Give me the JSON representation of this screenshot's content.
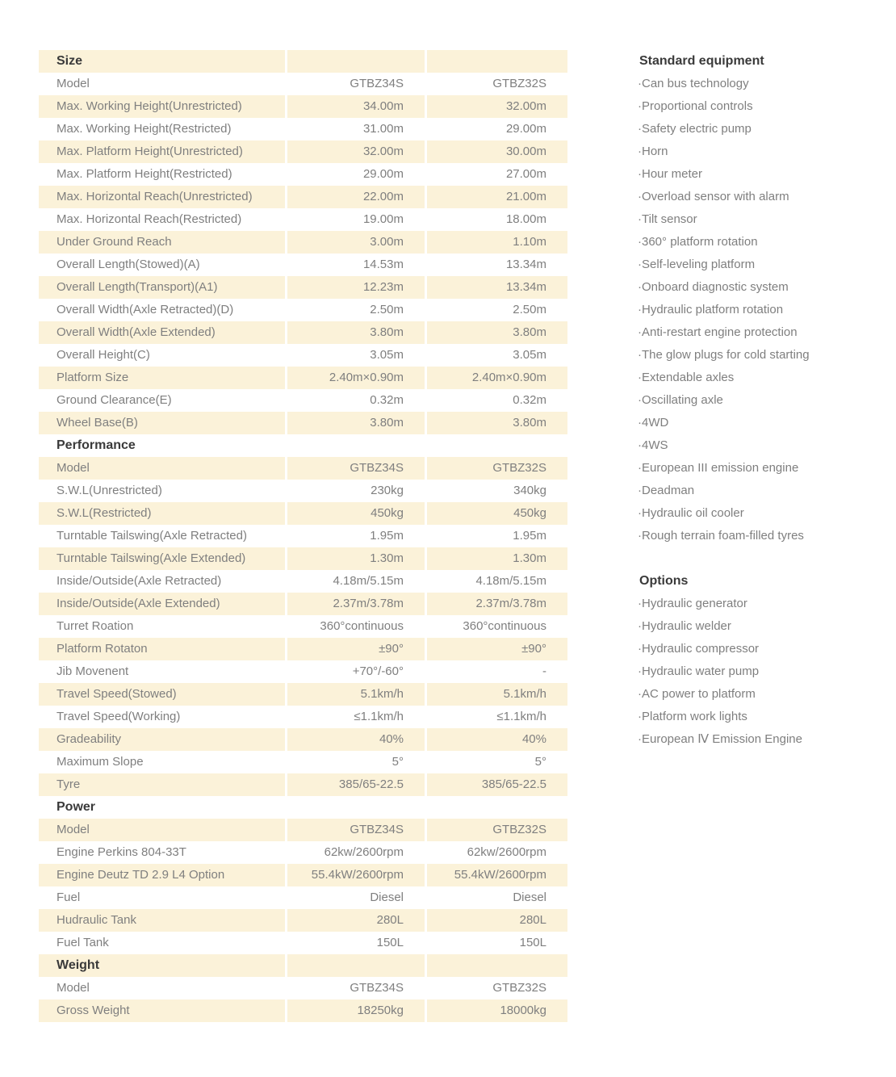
{
  "colors": {
    "row_stripe": "#fbf2d9",
    "body_text": "#7f7f7f",
    "heading_text": "#3a3a3a",
    "page_background": "#ffffff"
  },
  "spec_table": {
    "rows": [
      {
        "type": "section",
        "label": "Size",
        "v1": "",
        "v2": ""
      },
      {
        "type": "data",
        "label": "Model",
        "v1": "GTBZ34S",
        "v2": "GTBZ32S"
      },
      {
        "type": "data",
        "label": "Max. Working Height(Unrestricted)",
        "v1": "34.00m",
        "v2": "32.00m"
      },
      {
        "type": "data",
        "label": "Max. Working Height(Restricted)",
        "v1": "31.00m",
        "v2": "29.00m"
      },
      {
        "type": "data",
        "label": "Max. Platform Height(Unrestricted)",
        "v1": "32.00m",
        "v2": "30.00m"
      },
      {
        "type": "data",
        "label": "Max. Platform Height(Restricted)",
        "v1": "29.00m",
        "v2": "27.00m"
      },
      {
        "type": "data",
        "label": "Max. Horizontal Reach(Unrestricted)",
        "v1": "22.00m",
        "v2": "21.00m"
      },
      {
        "type": "data",
        "label": "Max. Horizontal Reach(Restricted)",
        "v1": "19.00m",
        "v2": "18.00m"
      },
      {
        "type": "data",
        "label": "Under Ground Reach",
        "v1": "3.00m",
        "v2": "1.10m"
      },
      {
        "type": "data",
        "label": "Overall Length(Stowed)(A)",
        "v1": "14.53m",
        "v2": "13.34m"
      },
      {
        "type": "data",
        "label": "Overall Length(Transport)(A1)",
        "v1": "12.23m",
        "v2": "13.34m"
      },
      {
        "type": "data",
        "label": "Overall Width(Axle Retracted)(D)",
        "v1": "2.50m",
        "v2": "2.50m"
      },
      {
        "type": "data",
        "label": "Overall Width(Axle Extended)",
        "v1": "3.80m",
        "v2": "3.80m"
      },
      {
        "type": "data",
        "label": "Overall Height(C)",
        "v1": "3.05m",
        "v2": "3.05m"
      },
      {
        "type": "data",
        "label": "Platform Size",
        "v1": "2.40m×0.90m",
        "v2": "2.40m×0.90m"
      },
      {
        "type": "data",
        "label": "Ground Clearance(E)",
        "v1": "0.32m",
        "v2": "0.32m"
      },
      {
        "type": "data",
        "label": "Wheel Base(B)",
        "v1": "3.80m",
        "v2": "3.80m"
      },
      {
        "type": "section",
        "label": "Performance",
        "v1": "",
        "v2": ""
      },
      {
        "type": "data",
        "label": "Model",
        "v1": "GTBZ34S",
        "v2": "GTBZ32S"
      },
      {
        "type": "data",
        "label": "S.W.L(Unrestricted)",
        "v1": "230kg",
        "v2": "340kg"
      },
      {
        "type": "data",
        "label": "S.W.L(Restricted)",
        "v1": "450kg",
        "v2": "450kg"
      },
      {
        "type": "data",
        "label": "Turntable Tailswing(Axle Retracted)",
        "v1": "1.95m",
        "v2": "1.95m"
      },
      {
        "type": "data",
        "label": "Turntable Tailswing(Axle Extended)",
        "v1": "1.30m",
        "v2": "1.30m"
      },
      {
        "type": "data",
        "label": "Inside/Outside(Axle Retracted)",
        "v1": "4.18m/5.15m",
        "v2": "4.18m/5.15m"
      },
      {
        "type": "data",
        "label": "Inside/Outside(Axle Extended)",
        "v1": "2.37m/3.78m",
        "v2": "2.37m/3.78m"
      },
      {
        "type": "data",
        "label": "Turret Roation",
        "v1": "360°continuous",
        "v2": "360°continuous"
      },
      {
        "type": "data",
        "label": "Platform Rotaton",
        "v1": "±90°",
        "v2": "±90°"
      },
      {
        "type": "data",
        "label": "Jib Movenent",
        "v1": "+70°/-60°",
        "v2": "-"
      },
      {
        "type": "data",
        "label": "Travel Speed(Stowed)",
        "v1": "5.1km/h",
        "v2": "5.1km/h"
      },
      {
        "type": "data",
        "label": "Travel Speed(Working)",
        "v1": "≤1.1km/h",
        "v2": "≤1.1km/h"
      },
      {
        "type": "data",
        "label": "Gradeability",
        "v1": "40%",
        "v2": "40%"
      },
      {
        "type": "data",
        "label": "Maximum Slope",
        "v1": "5°",
        "v2": "5°"
      },
      {
        "type": "data",
        "label": "Tyre",
        "v1": "385/65-22.5",
        "v2": "385/65-22.5"
      },
      {
        "type": "section",
        "label": "Power",
        "v1": "",
        "v2": ""
      },
      {
        "type": "data",
        "label": "Model",
        "v1": "GTBZ34S",
        "v2": "GTBZ32S"
      },
      {
        "type": "data",
        "label": "Engine Perkins 804-33T",
        "v1": "62kw/2600rpm",
        "v2": "62kw/2600rpm"
      },
      {
        "type": "data",
        "label": "Engine Deutz TD 2.9 L4 Option",
        "v1": "55.4kW/2600rpm",
        "v2": "55.4kW/2600rpm"
      },
      {
        "type": "data",
        "label": "Fuel",
        "v1": "Diesel",
        "v2": "Diesel"
      },
      {
        "type": "data",
        "label": "Hudraulic Tank",
        "v1": "280L",
        "v2": "280L"
      },
      {
        "type": "data",
        "label": "Fuel Tank",
        "v1": "150L",
        "v2": "150L"
      },
      {
        "type": "section",
        "label": "Weight",
        "v1": "",
        "v2": ""
      },
      {
        "type": "data",
        "label": "Model",
        "v1": "GTBZ34S",
        "v2": "GTBZ32S"
      },
      {
        "type": "data",
        "label": "Gross Weight",
        "v1": "18250kg",
        "v2": "18000kg"
      }
    ]
  },
  "equipment_panel": {
    "bullet": "·",
    "standard_title": "Standard equipment",
    "standard_items": [
      "Can bus technology",
      "Proportional controls",
      "Safety electric pump",
      "Horn",
      "Hour meter",
      "Overload sensor with alarm",
      "Tilt sensor",
      "360° platform rotation",
      "Self-leveling platform",
      "Onboard diagnostic system",
      "Hydraulic platform rotation",
      "Anti-restart engine protection",
      "The glow plugs for cold starting",
      "Extendable axles",
      "Oscillating axle",
      "4WD",
      "4WS",
      "European III emission engine",
      "Deadman",
      "Hydraulic oil cooler",
      "Rough terrain foam-filled tyres"
    ],
    "options_title": "Options",
    "options_items": [
      "Hydraulic generator",
      "Hydraulic welder",
      "Hydraulic compressor",
      "Hydraulic water pump",
      "AC power to platform",
      "Platform work lights",
      "European Ⅳ Emission Engine"
    ]
  }
}
